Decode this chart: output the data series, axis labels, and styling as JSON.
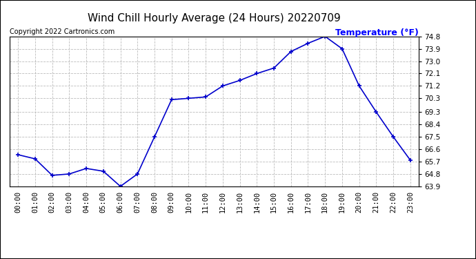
{
  "title": "Wind Chill Hourly Average (24 Hours) 20220709",
  "copyright": "Copyright 2022 Cartronics.com",
  "legend_label": "Temperature (°F)",
  "hours": [
    "00:00",
    "01:00",
    "02:00",
    "03:00",
    "04:00",
    "05:00",
    "06:00",
    "07:00",
    "08:00",
    "09:00",
    "10:00",
    "11:00",
    "12:00",
    "13:00",
    "14:00",
    "15:00",
    "16:00",
    "17:00",
    "18:00",
    "19:00",
    "20:00",
    "21:00",
    "22:00",
    "23:00"
  ],
  "values": [
    66.2,
    65.9,
    64.7,
    64.8,
    65.2,
    65.0,
    63.9,
    64.8,
    67.5,
    70.2,
    70.3,
    70.4,
    71.2,
    71.6,
    72.1,
    72.5,
    73.7,
    74.3,
    74.8,
    73.9,
    71.2,
    69.3,
    67.5,
    65.8
  ],
  "line_color": "#0000cc",
  "marker": "+",
  "marker_size": 5,
  "marker_linewidth": 1.2,
  "linewidth": 1.2,
  "ylim_min": 63.9,
  "ylim_max": 74.8,
  "yticks": [
    63.9,
    64.8,
    65.7,
    66.6,
    67.5,
    68.4,
    69.3,
    70.3,
    71.2,
    72.1,
    73.0,
    73.9,
    74.8
  ],
  "background_color": "#ffffff",
  "grid_color": "#bbbbbb",
  "title_color": "#000000",
  "copyright_color": "#000000",
  "legend_color": "#0000ff",
  "title_fontsize": 11,
  "copyright_fontsize": 7,
  "legend_fontsize": 9,
  "tick_fontsize": 7.5,
  "border_color": "#000000"
}
